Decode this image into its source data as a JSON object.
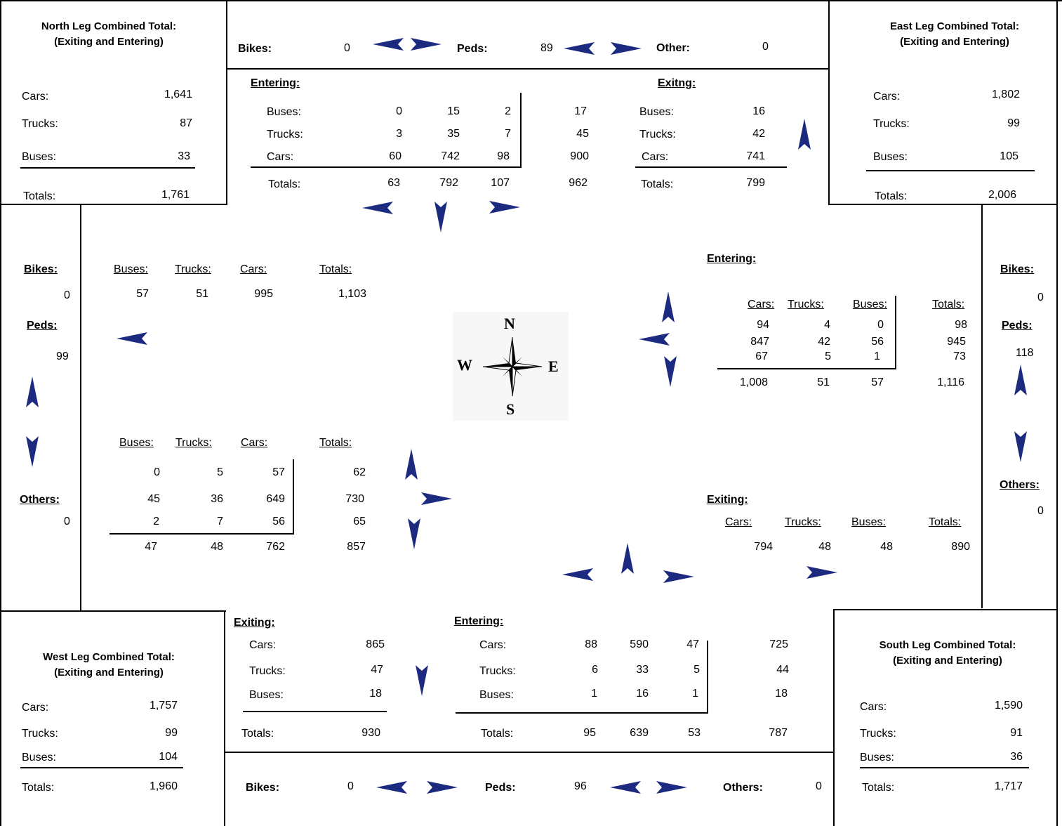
{
  "north_leg": {
    "title_line1": "North Leg Combined Total:",
    "title_line2": "(Exiting and Entering)",
    "rows": [
      {
        "label": "Cars:",
        "value": "1,641"
      },
      {
        "label": "Trucks:",
        "value": "87"
      },
      {
        "label": "Buses:",
        "value": "33"
      }
    ],
    "total_label": "Totals:",
    "total_value": "1,761"
  },
  "east_leg": {
    "title_line1": "East Leg Combined Total:",
    "title_line2": "(Exiting and Entering)",
    "rows": [
      {
        "label": "Cars:",
        "value": "1,802"
      },
      {
        "label": "Trucks:",
        "value": "99"
      },
      {
        "label": "Buses:",
        "value": "105"
      }
    ],
    "total_label": "Totals:",
    "total_value": "2,006"
  },
  "west_leg": {
    "title_line1": "West Leg Combined Total:",
    "title_line2": "(Exiting and Entering)",
    "rows": [
      {
        "label": "Cars:",
        "value": "1,757"
      },
      {
        "label": "Trucks:",
        "value": "99"
      },
      {
        "label": "Buses:",
        "value": "104"
      }
    ],
    "total_label": "Totals:",
    "total_value": "1,960"
  },
  "south_leg": {
    "title_line1": "South Leg Combined Total:",
    "title_line2": "(Exiting and Entering)",
    "rows": [
      {
        "label": "Cars:",
        "value": "1,590"
      },
      {
        "label": "Trucks:",
        "value": "91"
      },
      {
        "label": "Buses:",
        "value": "36"
      }
    ],
    "total_label": "Totals:",
    "total_value": "1,717"
  },
  "north_ped": {
    "bikes_label": "Bikes:",
    "bikes_value": "0",
    "peds_label": "Peds:",
    "peds_value": "89",
    "other_label": "Other:",
    "other_value": "0"
  },
  "south_ped": {
    "bikes_label": "Bikes:",
    "bikes_value": "0",
    "peds_label": "Peds:",
    "peds_value": "96",
    "others_label": "Others:",
    "others_value": "0"
  },
  "west_ped": {
    "bikes_label": "Bikes:",
    "bikes_value": "0",
    "peds_label": "Peds:",
    "peds_value": "99",
    "others_label": "Others:",
    "others_value": "0"
  },
  "east_ped": {
    "bikes_label": "Bikes:",
    "bikes_value": "0",
    "peds_label": "Peds:",
    "peds_value": "118",
    "others_label": "Others:",
    "others_value": "0"
  },
  "north_entering": {
    "heading": "Entering:",
    "rows": [
      {
        "label": "Buses:",
        "v1": "0",
        "v2": "15",
        "v3": "2",
        "total": "17"
      },
      {
        "label": "Trucks:",
        "v1": "3",
        "v2": "35",
        "v3": "7",
        "total": "45"
      },
      {
        "label": "Cars:",
        "v1": "60",
        "v2": "742",
        "v3": "98",
        "total": "900"
      }
    ],
    "totals": {
      "label": "Totals:",
      "v1": "63",
      "v2": "792",
      "v3": "107",
      "total": "962"
    }
  },
  "north_exiting": {
    "heading": "Exitng:",
    "rows": [
      {
        "label": "Buses:",
        "value": "16"
      },
      {
        "label": "Trucks:",
        "value": "42"
      },
      {
        "label": "Cars:",
        "value": "741"
      }
    ],
    "totals": {
      "label": "Totals:",
      "value": "799"
    }
  },
  "west_exiting": {
    "headers": [
      "Buses:",
      "Trucks:",
      "Cars:",
      "Totals:"
    ],
    "values": [
      "57",
      "51",
      "995",
      "1,103"
    ]
  },
  "west_entering": {
    "headers": [
      "Buses:",
      "Trucks:",
      "Cars:",
      "Totals:"
    ],
    "rows": [
      [
        "0",
        "5",
        "57",
        "62"
      ],
      [
        "45",
        "36",
        "649",
        "730"
      ],
      [
        "2",
        "7",
        "56",
        "65"
      ]
    ],
    "totals": [
      "47",
      "48",
      "762",
      "857"
    ]
  },
  "east_entering": {
    "heading": "Entering:",
    "headers": [
      "Cars:",
      "Trucks:",
      "Buses:",
      "Totals:"
    ],
    "rows": [
      [
        "94",
        "4",
        "0",
        "98"
      ],
      [
        "847",
        "42",
        "56",
        "945"
      ],
      [
        "67",
        "5",
        "1",
        "73"
      ]
    ],
    "totals": [
      "1,008",
      "51",
      "57",
      "1,116"
    ]
  },
  "east_exiting": {
    "heading": "Exiting:",
    "headers": [
      "Cars:",
      "Trucks:",
      "Buses:",
      "Totals:"
    ],
    "values": [
      "794",
      "48",
      "48",
      "890"
    ]
  },
  "south_exiting": {
    "heading": "Exiting:",
    "rows": [
      {
        "label": "Cars:",
        "value": "865"
      },
      {
        "label": "Trucks:",
        "value": "47"
      },
      {
        "label": "Buses:",
        "value": "18"
      }
    ],
    "totals": {
      "label": "Totals:",
      "value": "930"
    }
  },
  "south_entering": {
    "heading": "Entering:",
    "rows": [
      {
        "label": "Cars:",
        "v1": "88",
        "v2": "590",
        "v3": "47",
        "total": "725"
      },
      {
        "label": "Trucks:",
        "v1": "6",
        "v2": "33",
        "v3": "5",
        "total": "44"
      },
      {
        "label": "Buses:",
        "v1": "1",
        "v2": "16",
        "v3": "1",
        "total": "18"
      }
    ],
    "totals": {
      "label": "Totals:",
      "v1": "95",
      "v2": "639",
      "v3": "53",
      "total": "787"
    }
  },
  "compass": {
    "n": "N",
    "s": "S",
    "e": "E",
    "w": "W"
  },
  "colors": {
    "arrow": "#1c2a80",
    "line": "#000000",
    "background": "#ffffff"
  }
}
